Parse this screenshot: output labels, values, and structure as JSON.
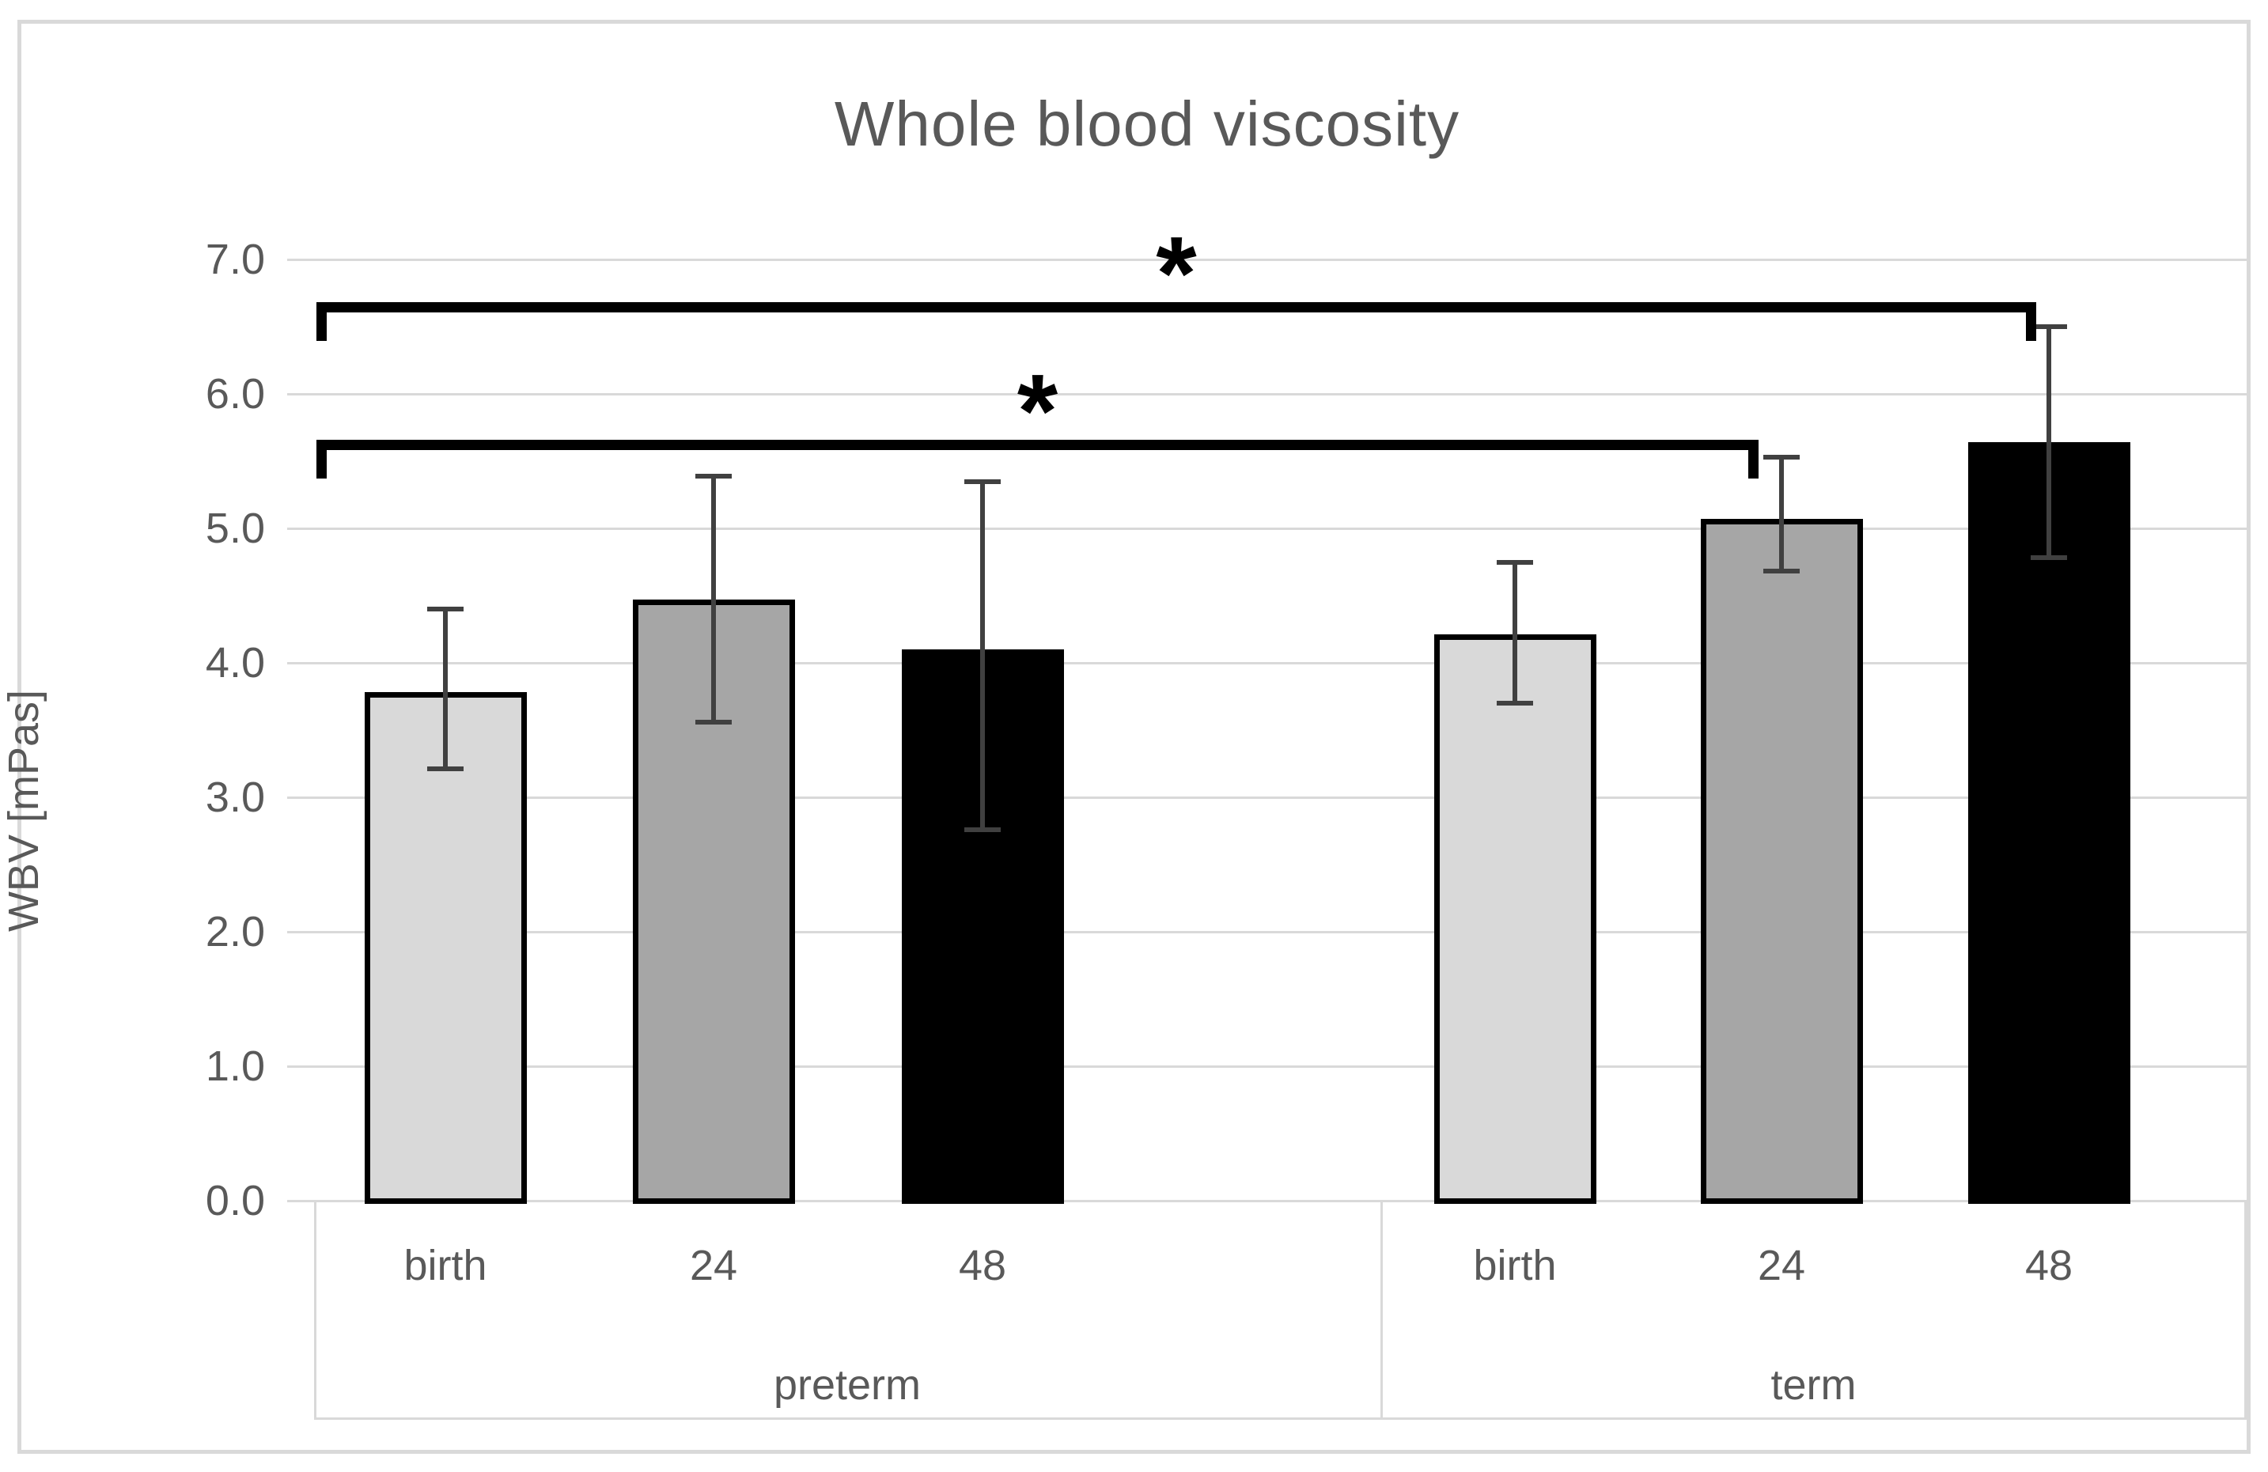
{
  "figure": {
    "border_color": "#d9d9d9",
    "background": "#ffffff"
  },
  "chart_data": {
    "type": "bar",
    "title": "Whole blood viscosity",
    "xlabel": "",
    "ylabel": "WBV [mPas]",
    "ylim": [
      0.0,
      7.0
    ],
    "yticks": [
      "7.0",
      "6.0",
      "5.0",
      "4.0",
      "3.0",
      "2.0",
      "1.0",
      "0.0"
    ],
    "grid": true,
    "legend": "none",
    "gridline_color": "#d9d9d9",
    "error_bar_color": "#404040",
    "bar_border_color": "#000000",
    "text_color": "#595959",
    "groups": [
      {
        "label": "preterm",
        "bars": [
          {
            "category": "birth",
            "value": 3.78,
            "error_high": 4.4,
            "error_low": 3.21,
            "fill": "#d9d9d9"
          },
          {
            "category": "24",
            "value": 4.47,
            "error_high": 5.39,
            "error_low": 3.56,
            "fill": "#a6a6a6"
          },
          {
            "category": "48",
            "value": 4.1,
            "error_high": 5.35,
            "error_low": 2.76,
            "fill": "#000000"
          }
        ]
      },
      {
        "label": "term",
        "bars": [
          {
            "category": "birth",
            "value": 4.21,
            "error_high": 4.75,
            "error_low": 3.7,
            "fill": "#d9d9d9"
          },
          {
            "category": "24",
            "value": 5.07,
            "error_high": 5.53,
            "error_low": 4.68,
            "fill": "#a6a6a6"
          },
          {
            "category": "48",
            "value": 5.64,
            "error_high": 6.5,
            "error_low": 4.78,
            "fill": "#000000"
          }
        ]
      }
    ],
    "significance_brackets": [
      {
        "label": "*",
        "from_group": "preterm",
        "from_category": "birth",
        "to_group": "term",
        "to_category": "48",
        "y": 6.68
      },
      {
        "label": "*",
        "from_group": "preterm",
        "from_category": "birth",
        "to_group": "term",
        "to_category": "24",
        "y": 5.66
      }
    ]
  }
}
